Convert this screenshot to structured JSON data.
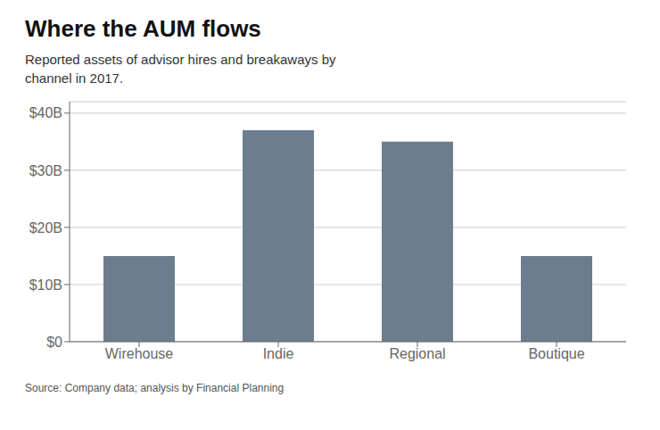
{
  "chart_data": {
    "type": "bar",
    "title": "Where the AUM flows",
    "subtitle": "Reported assets of advisor hires and breakaways by\nchannel in 2017.",
    "annotations": [
      "Source: Company data; analysis by Financial Planning"
    ],
    "categories": [
      "Wirehouse",
      "Indie",
      "Regional",
      "Boutique"
    ],
    "values": [
      15,
      37,
      35,
      15
    ],
    "color": "#6b7d8e",
    "ylim": [
      0,
      42
    ],
    "yticks": [
      {
        "value": 0,
        "label": "$0"
      },
      {
        "value": 10,
        "label": "$10B"
      },
      {
        "value": 20,
        "label": "$20B"
      },
      {
        "value": 30,
        "label": "$30B"
      },
      {
        "value": 40,
        "label": "$40B"
      }
    ],
    "grid": true
  }
}
